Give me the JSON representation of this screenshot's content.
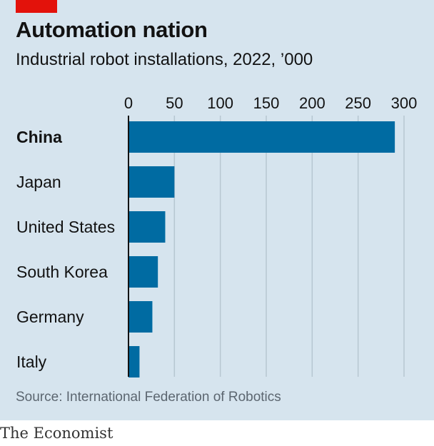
{
  "colors": {
    "accent": "#e3120b",
    "bar": "#006ba2",
    "background": "#d6e4ee",
    "gridline": "#b7c6d1"
  },
  "header": {
    "title": "Automation nation",
    "subtitle": "Industrial robot installations, 2022, ’000"
  },
  "footer": {
    "source": "Source: International Federation of Robotics",
    "brand": "The Economist"
  },
  "chart_data": {
    "type": "bar",
    "orientation": "horizontal",
    "title": "Automation nation",
    "subtitle": "Industrial robot installations, 2022, ’000",
    "categories": [
      "China",
      "Japan",
      "United States",
      "South Korea",
      "Germany",
      "Italy"
    ],
    "highlighted_category": "China",
    "values": [
      290,
      50,
      40,
      32,
      26,
      12
    ],
    "xlim": [
      0,
      300
    ],
    "xticks": [
      0,
      50,
      100,
      150,
      200,
      250,
      300
    ],
    "tick_labels": [
      "0",
      "50",
      "100",
      "150",
      "200",
      "250",
      "300"
    ],
    "axis_position": "top",
    "grid": true
  }
}
